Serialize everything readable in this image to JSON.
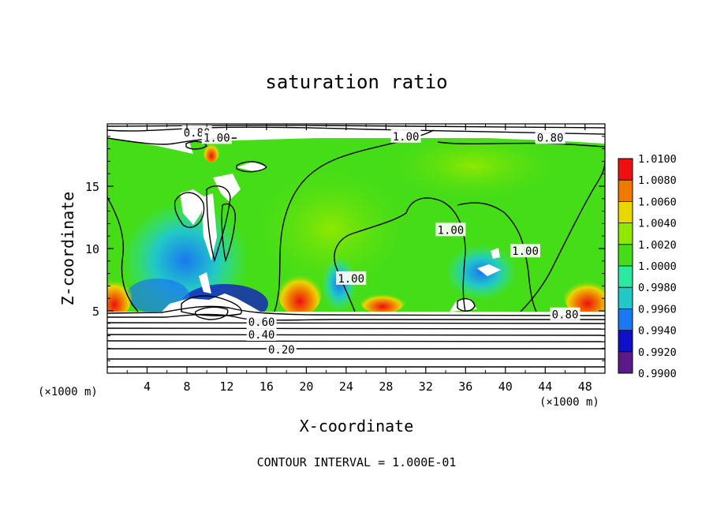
{
  "chart_data": {
    "type": "heatmap",
    "title": "saturation ratio",
    "xlabel": "X-coordinate",
    "ylabel": "Z-coordinate",
    "x_unit_label": "(×1000 m)",
    "x_ticks": [
      4,
      8,
      12,
      16,
      20,
      24,
      28,
      32,
      36,
      40,
      44,
      48
    ],
    "y_ticks": [
      5,
      10,
      15
    ],
    "xlim": [
      0,
      50
    ],
    "ylim": [
      0,
      20
    ],
    "colorbar": {
      "levels": [
        "0.9900",
        "0.9920",
        "0.9940",
        "0.9960",
        "0.9980",
        "1.0000",
        "1.0020",
        "1.0040",
        "1.0060",
        "1.0080",
        "1.0100"
      ],
      "colors": [
        "#5a1a8a",
        "#1010c8",
        "#1a78f0",
        "#22c8c8",
        "#2ce8a0",
        "#44dd18",
        "#90e800",
        "#e8d800",
        "#f07a00",
        "#ee1010",
        "#f08a8a"
      ]
    },
    "field_notes": {
      "background_level": "1.0000",
      "cloud_free_region": "white",
      "dominant_color": "#44dd18"
    },
    "contour_labels": [
      {
        "text": "0.80",
        "x": 9,
        "y": 19.3
      },
      {
        "text": "1.00",
        "x": 11,
        "y": 18.9
      },
      {
        "text": "1.00",
        "x": 30,
        "y": 19.0
      },
      {
        "text": "0.80",
        "x": 44.5,
        "y": 18.9
      },
      {
        "text": "1.00",
        "x": 34.5,
        "y": 11.5
      },
      {
        "text": "1.00",
        "x": 42,
        "y": 9.8
      },
      {
        "text": "1.00",
        "x": 24.5,
        "y": 7.6
      },
      {
        "text": "0.80",
        "x": 46,
        "y": 4.7
      },
      {
        "text": "0.60",
        "x": 15.5,
        "y": 4.1
      },
      {
        "text": "0.40",
        "x": 15.5,
        "y": 3.1
      },
      {
        "text": "0.20",
        "x": 17.5,
        "y": 1.9
      }
    ],
    "contour_interval_text": "CONTOUR INTERVAL = 1.000E-01"
  }
}
